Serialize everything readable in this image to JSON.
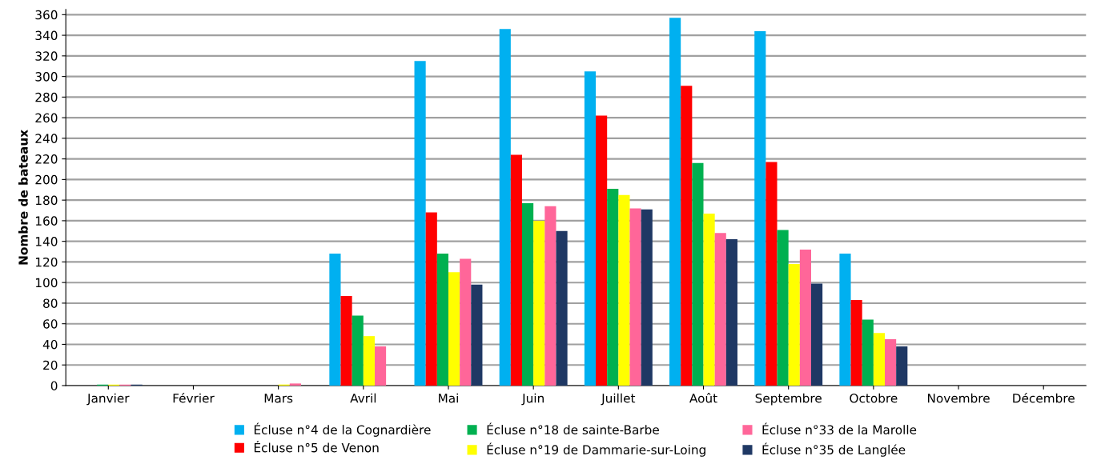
{
  "chart_data": {
    "type": "bar",
    "ylabel": "Nombre de bateaux",
    "categories": [
      "Janvier",
      "Février",
      "Mars",
      "Avril",
      "Mai",
      "Juin",
      "Juillet",
      "Août",
      "Septembre",
      "Octobre",
      "Novembre",
      "Décembre"
    ],
    "series": [
      {
        "name": "Écluse n°4 de la Cognardière",
        "color": "#00b0f0",
        "values": [
          0,
          0,
          0,
          128,
          315,
          346,
          305,
          357,
          344,
          128,
          0,
          0
        ]
      },
      {
        "name": "Écluse n°5 de Venon",
        "color": "#ff0000",
        "values": [
          0,
          0,
          0,
          87,
          168,
          224,
          262,
          291,
          217,
          83,
          0,
          0
        ]
      },
      {
        "name": "Écluse n°18 de sainte-Barbe",
        "color": "#00b050",
        "values": [
          1,
          0,
          0,
          68,
          128,
          177,
          191,
          216,
          151,
          64,
          0,
          0
        ]
      },
      {
        "name": "Écluse n°19 de Dammarie-sur-Loing",
        "color": "#ffff00",
        "values": [
          1,
          0,
          1,
          48,
          110,
          160,
          185,
          167,
          118,
          51,
          0,
          0
        ]
      },
      {
        "name": "Écluse n°33 de la Marolle",
        "color": "#ff6699",
        "values": [
          1,
          0,
          2,
          38,
          123,
          174,
          172,
          148,
          132,
          45,
          0,
          0
        ]
      },
      {
        "name": "Écluse n°35 de Langlée",
        "color": "#1f3864",
        "values": [
          1,
          0,
          0,
          0,
          98,
          150,
          171,
          142,
          99,
          38,
          0,
          0
        ]
      }
    ],
    "ylim": [
      0,
      365
    ],
    "yticks": [
      0,
      20,
      40,
      60,
      80,
      100,
      120,
      140,
      160,
      180,
      200,
      220,
      240,
      260,
      280,
      300,
      320,
      340,
      360
    ],
    "grid": "y",
    "legend": "bottom"
  }
}
